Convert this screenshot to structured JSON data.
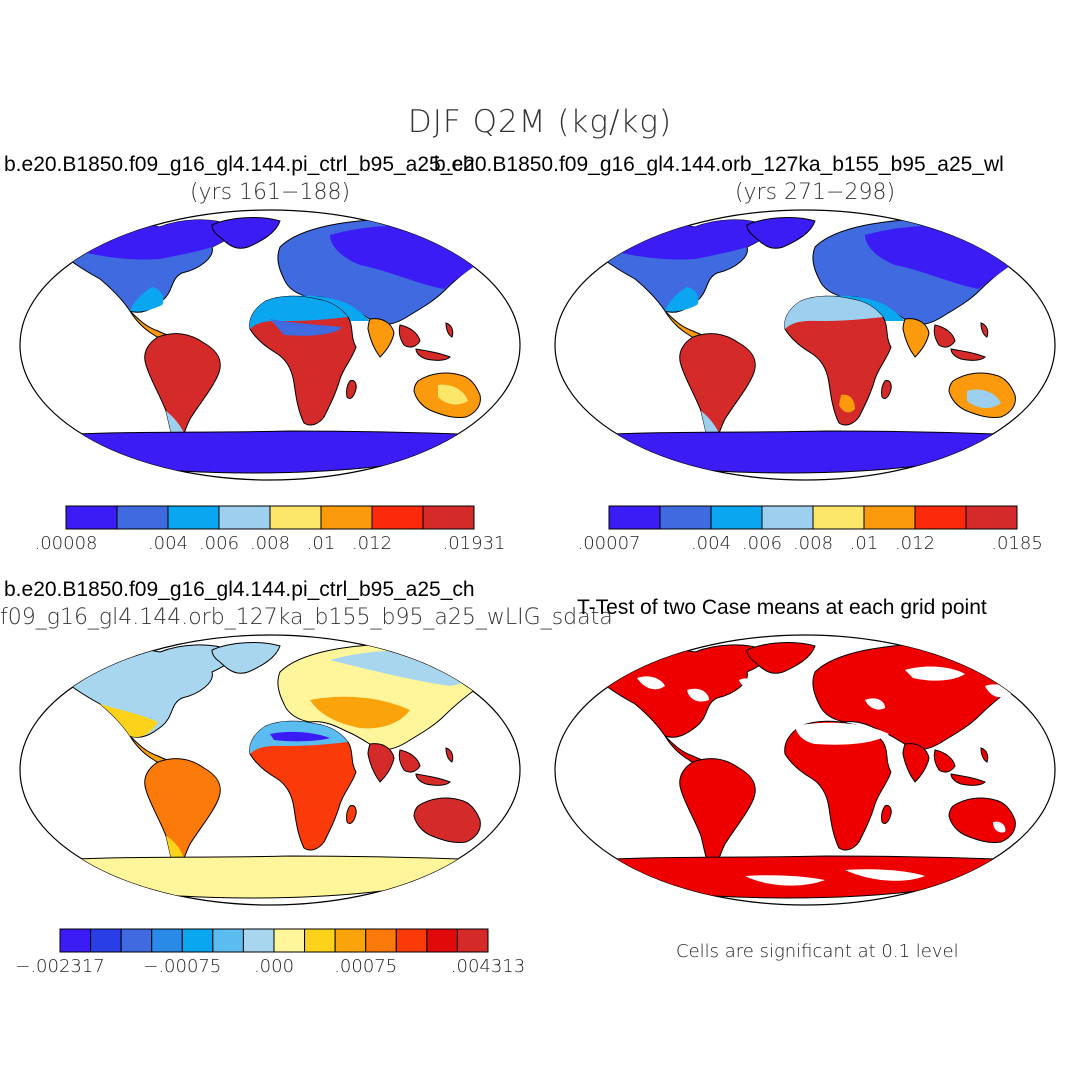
{
  "figure": {
    "title": "DJF Q2M (kg/kg)"
  },
  "panels": [
    {
      "title": "b.e20.B1850.f09_g16_gl4.144.pi_ctrl_b95_a25_ch",
      "subtitle": "(yrs 161−188)",
      "colorbar": {
        "colors": [
          "#3b1cf5",
          "#3f6ae0",
          "#0aa6f0",
          "#9dd0ef",
          "#fbe66a",
          "#fb9a0c",
          "#fb2a0a",
          "#d42a2a"
        ],
        "tick_labels": [
          ".00008",
          ".004",
          ".006",
          ".008",
          ".01",
          ".012",
          ".01931"
        ]
      }
    },
    {
      "title": "b.e20.B1850.f09_g16_gl4.144.orb_127ka_b155_b95_a25_wl",
      "subtitle": "(yrs 271−298)",
      "colorbar": {
        "colors": [
          "#3b1cf5",
          "#3f6ae0",
          "#0aa6f0",
          "#9dd0ef",
          "#fbe66a",
          "#fb9a0c",
          "#fb2a0a",
          "#d42a2a"
        ],
        "tick_labels": [
          ".00007",
          ".004",
          ".006",
          ".008",
          ".01",
          ".012",
          ".0185"
        ]
      }
    },
    {
      "title": "b.e20.B1850.f09_g16_gl4.144.pi_ctrl_b95_a25_ch",
      "subtitle": "f09_g16_gl4.144.orb_127ka_b155_b95_a25_wLIG_sdata",
      "colorbar": {
        "colors": [
          "#3b1cf5",
          "#2a3ee8",
          "#3f6ae0",
          "#2a8ae8",
          "#0aa6f0",
          "#5bbcf0",
          "#a8d6ee",
          "#fff59a",
          "#fdd21a",
          "#fba30a",
          "#fb7a0a",
          "#fb3a0a",
          "#e00a0a",
          "#d42a2a"
        ],
        "tick_labels": [
          "−.002317",
          "−.00075",
          ".000",
          ".00075",
          ".004313"
        ]
      }
    },
    {
      "title": "T-Test of two Case means at each grid point",
      "note": "Cells are significant at 0.1 level",
      "color": "#ee0000"
    }
  ]
}
